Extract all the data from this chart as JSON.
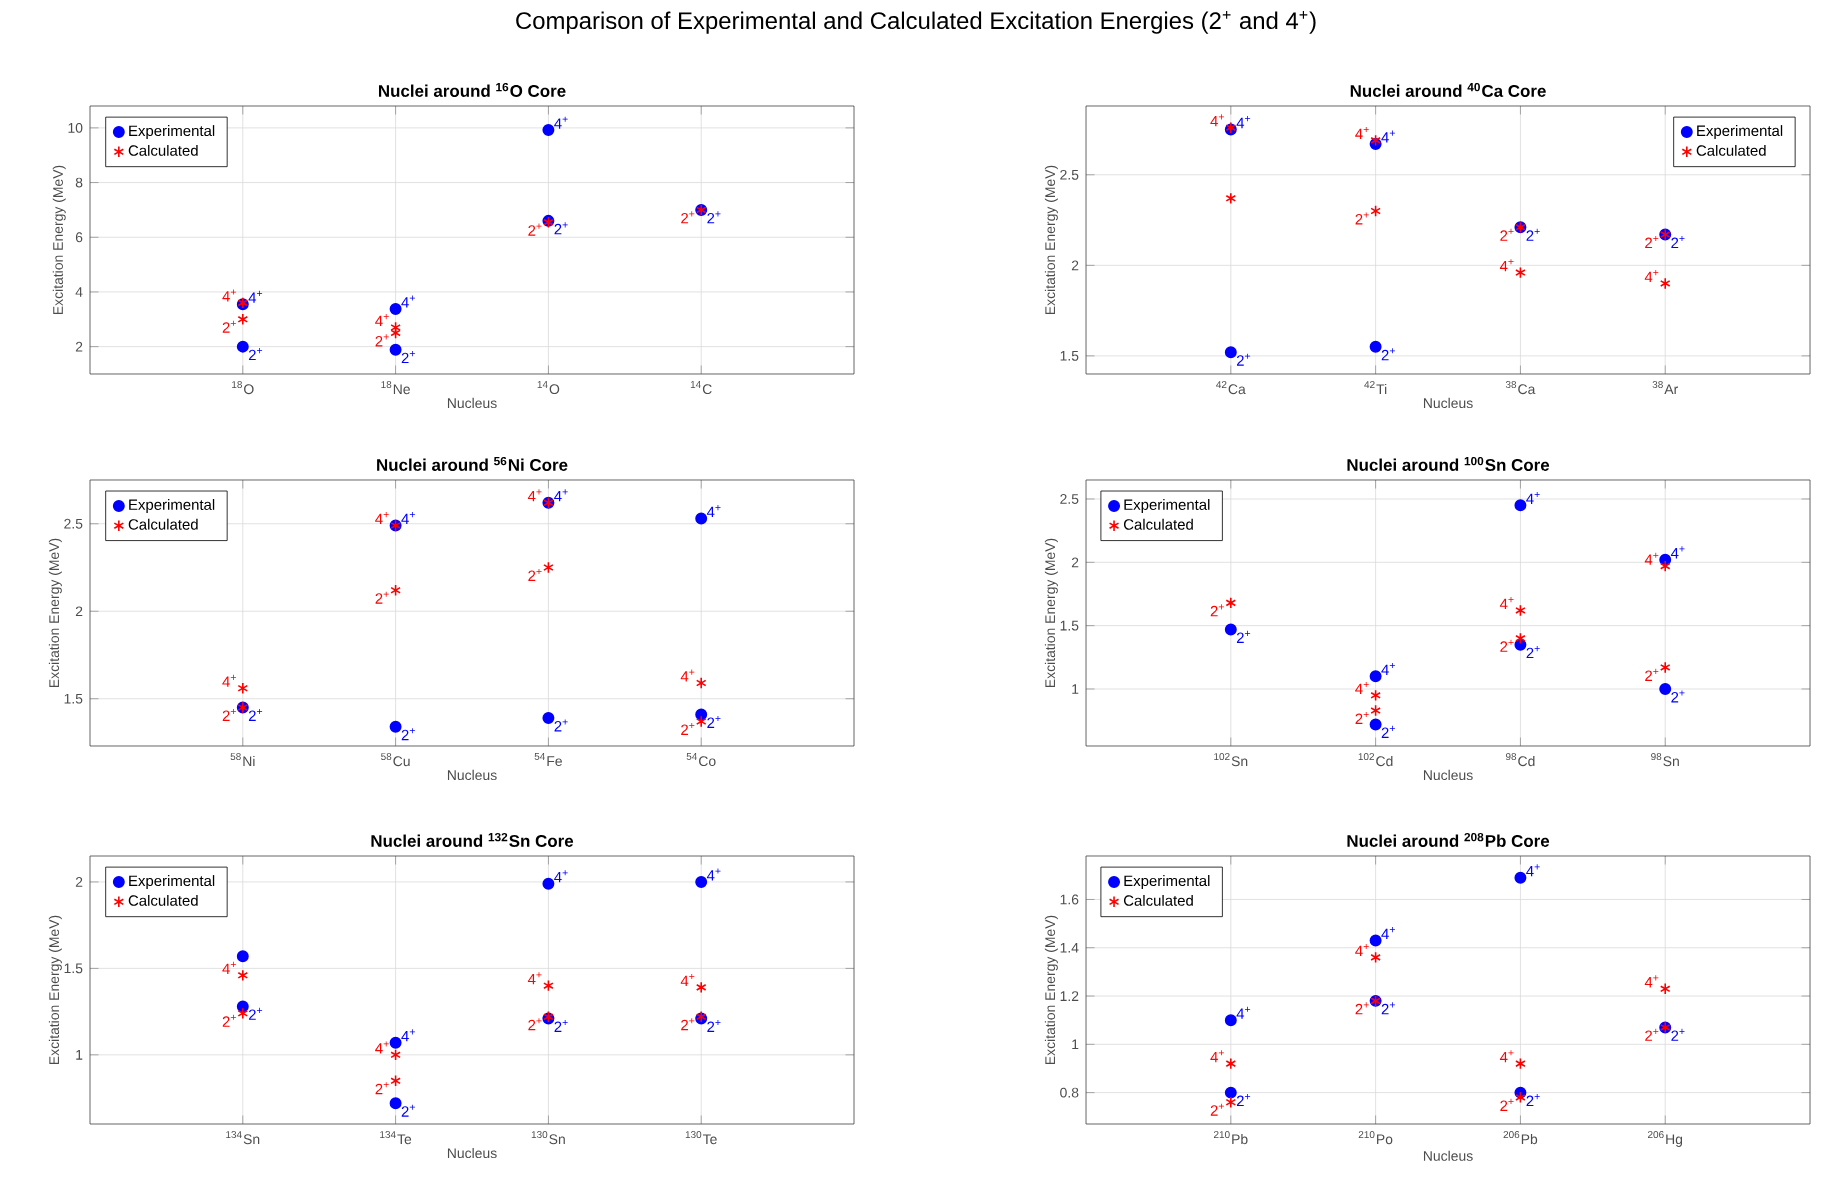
{
  "chart_data": [
    {
      "type": "scatter",
      "title": "Nuclei around $^{16}$O Core",
      "xlabel": "Nucleus",
      "ylabel": "Excitation Energy (MeV)",
      "categories": [
        "$^{18}$O",
        "$^{18}$Ne",
        "$^{14}$O",
        "$^{14}$C"
      ],
      "ylim": [
        1,
        10.8
      ],
      "yticks": [
        2,
        4,
        6,
        8,
        10
      ],
      "grid": true,
      "legend": "top left",
      "series": [
        {
          "name": "Experimental",
          "color": "#0000ff",
          "marker": "circle",
          "values": [
            2.0,
            1.89,
            6.6,
            7.0
          ]
        },
        {
          "color": "#0000ff",
          "marker": "circle",
          "values": [
            3.55,
            3.38,
            9.92,
            null
          ]
        },
        {
          "name": "Calculated",
          "color": "#ff0000",
          "marker": "cross",
          "values": [
            3.0,
            2.5,
            6.55,
            7.0
          ]
        },
        {
          "color": "#ff0000",
          "marker": "cross",
          "values": [
            3.6,
            2.7,
            null,
            null
          ]
        }
      ],
      "annotations": [
        "Comparison of Experimental and Calculated Excitation Energies (2$^{+}$ and 4$^{+}$)",
        {
          "text": "2$^{+}$",
          "x": "$^{18}$O",
          "y": 2.0
        },
        {
          "text": "2$^{+}$",
          "x": "$^{18}$Ne",
          "y": 1.89
        },
        {
          "text": "2$^{+}$",
          "x": "$^{14}$O",
          "y": 6.6
        },
        {
          "text": "2$^{+}$",
          "x": "$^{14}$C",
          "y": 7.0
        },
        {
          "text": "4$^{+}$",
          "x": "$^{18}$O",
          "y": 3.55
        },
        {
          "text": "4$^{+}$",
          "x": "$^{18}$Ne",
          "y": 3.38
        },
        {
          "text": "4$^{+}$",
          "x": "$^{14}$O",
          "y": 9.92
        },
        {
          "text": "2$^{+}$",
          "x": "$^{18}$O",
          "y": 3.0
        },
        {
          "text": "2$^{+}$",
          "x": "$^{18}$Ne",
          "y": 2.5
        },
        {
          "text": "2$^{+}$",
          "x": "$^{14}$O",
          "y": 6.55
        },
        {
          "text": "2$^{+}$",
          "x": "$^{14}$C",
          "y": 7.0
        },
        {
          "text": "4$^{+}$",
          "x": "$^{18}$O",
          "y": 3.6
        },
        {
          "text": "4$^{+}$",
          "x": "$^{18}$Ne",
          "y": 2.7
        }
      ]
    },
    {
      "type": "scatter",
      "title": "Nuclei around $^{40}$Ca Core",
      "xlabel": "Nucleus",
      "ylabel": "Excitation Energy (MeV)",
      "categories": [
        "$^{42}$Ca",
        "$^{42}$Ti",
        "$^{38}$Ca",
        "$^{38}$Ar"
      ],
      "ylim": [
        1.4,
        2.88
      ],
      "yticks": [
        1.5,
        2,
        2.5
      ],
      "grid": true,
      "legend": "top right",
      "series": [
        {
          "name": "Experimental",
          "color": "#0000ff",
          "marker": "circle",
          "values": [
            1.52,
            1.55,
            2.21,
            2.17
          ]
        },
        {
          "color": "#0000ff",
          "marker": "circle",
          "values": [
            2.75,
            2.67,
            null,
            null
          ]
        },
        {
          "name": "Calculated",
          "color": "#ff0000",
          "marker": "cross",
          "values": [
            2.37,
            2.3,
            2.21,
            2.17
          ]
        },
        {
          "color": "#ff0000",
          "marker": "cross",
          "values": [
            2.76,
            2.69,
            1.96,
            1.9
          ]
        }
      ],
      "annotations": [
        {
          "text": "2$^{+}$",
          "x": "$^{42}$Ca",
          "y": 1.52
        },
        {
          "text": "2$^{+}$",
          "x": "$^{42}$Ti",
          "y": 1.55
        },
        {
          "text": "2$^{+}$",
          "x": "$^{38}$Ca",
          "y": 2.21
        },
        {
          "text": "2$^{+}$",
          "x": "$^{38}$Ar",
          "y": 2.17
        },
        {
          "text": "4$^{+}$",
          "x": "$^{42}$Ca",
          "y": 2.75
        },
        {
          "text": "4$^{+}$",
          "x": "$^{42}$Ti",
          "y": 2.67
        },
        {
          "text": "2$^{+}$",
          "x": "$^{42}$Ti",
          "y": 2.3
        },
        {
          "text": "2$^{+}$",
          "x": "$^{38}$Ca",
          "y": 2.21
        },
        {
          "text": "2$^{+}$",
          "x": "$^{38}$Ar",
          "y": 2.17
        },
        {
          "text": "4$^{+}$",
          "x": "$^{42}$Ca",
          "y": 2.76
        },
        {
          "text": "4$^{+}$",
          "x": "$^{42}$Ti",
          "y": 2.69
        },
        {
          "text": "4$^{+}$",
          "x": "$^{38}$Ca",
          "y": 1.96
        },
        {
          "text": "4$^{+}$",
          "x": "$^{38}$Ar",
          "y": 1.9
        }
      ]
    },
    {
      "type": "scatter",
      "title": "Nuclei around $^{56}$Ni Core",
      "xlabel": "Nucleus",
      "ylabel": "Excitation Energy (MeV)",
      "categories": [
        "$^{58}$Ni",
        "$^{58}$Cu",
        "$^{54}$Fe",
        "$^{54}$Co"
      ],
      "ylim": [
        1.23,
        2.75
      ],
      "yticks": [
        1.5,
        2,
        2.5
      ],
      "grid": true,
      "legend": "top left",
      "series": [
        {
          "name": "Experimental",
          "color": "#0000ff",
          "marker": "circle",
          "values": [
            1.45,
            1.34,
            1.39,
            1.41
          ]
        },
        {
          "color": "#0000ff",
          "marker": "circle",
          "values": [
            null,
            2.49,
            2.62,
            2.53
          ]
        },
        {
          "name": "Calculated",
          "color": "#ff0000",
          "marker": "cross",
          "values": [
            1.45,
            2.12,
            2.25,
            1.37
          ]
        },
        {
          "color": "#ff0000",
          "marker": "cross",
          "values": [
            1.56,
            2.49,
            2.62,
            1.59
          ]
        }
      ],
      "annotations": [
        {
          "text": "2$^{+}$",
          "x": "$^{58}$Ni",
          "y": 1.45
        },
        {
          "text": "2$^{+}$",
          "x": "$^{58}$Cu",
          "y": 1.34
        },
        {
          "text": "2$^{+}$",
          "x": "$^{54}$Fe",
          "y": 1.39
        },
        {
          "text": "2$^{+}$",
          "x": "$^{54}$Co",
          "y": 1.41
        },
        {
          "text": "4$^{+}$",
          "x": "$^{58}$Cu",
          "y": 2.49
        },
        {
          "text": "4$^{+}$",
          "x": "$^{54}$Fe",
          "y": 2.62
        },
        {
          "text": "4$^{+}$",
          "x": "$^{54}$Co",
          "y": 2.53
        },
        {
          "text": "2$^{+}$",
          "x": "$^{58}$Ni",
          "y": 1.45
        },
        {
          "text": "2$^{+}$",
          "x": "$^{58}$Cu",
          "y": 2.12
        },
        {
          "text": "2$^{+}$",
          "x": "$^{54}$Fe",
          "y": 2.25
        },
        {
          "text": "2$^{+}$",
          "x": "$^{54}$Co",
          "y": 1.37
        },
        {
          "text": "4$^{+}$",
          "x": "$^{58}$Ni",
          "y": 1.56
        },
        {
          "text": "4$^{+}$",
          "x": "$^{58}$Cu",
          "y": 2.49
        },
        {
          "text": "4$^{+}$",
          "x": "$^{54}$Fe",
          "y": 2.62
        },
        {
          "text": "4$^{+}$",
          "x": "$^{54}$Co",
          "y": 1.59
        }
      ]
    },
    {
      "type": "scatter",
      "title": "Nuclei around $^{100}$Sn Core",
      "xlabel": "Nucleus",
      "ylabel": "Excitation Energy (MeV)",
      "categories": [
        "$^{102}$Sn",
        "$^{102}$Cd",
        "$^{98}$Cd",
        "$^{98}$Sn"
      ],
      "ylim": [
        0.55,
        2.65
      ],
      "yticks": [
        1,
        1.5,
        2,
        2.5
      ],
      "grid": true,
      "legend": "top left",
      "series": [
        {
          "name": "Experimental",
          "color": "#0000ff",
          "marker": "circle",
          "values": [
            1.47,
            0.72,
            1.35,
            1.0
          ]
        },
        {
          "color": "#0000ff",
          "marker": "circle",
          "values": [
            null,
            1.1,
            2.45,
            2.02
          ]
        },
        {
          "name": "Calculated",
          "color": "#ff0000",
          "marker": "cross",
          "values": [
            1.68,
            0.83,
            1.4,
            1.17
          ]
        },
        {
          "color": "#ff0000",
          "marker": "cross",
          "values": [
            null,
            0.95,
            1.62,
            1.97
          ]
        }
      ],
      "annotations": [
        {
          "text": "2$^{+}$",
          "x": "$^{102}$Sn",
          "y": 1.47
        },
        {
          "text": "2$^{+}$",
          "x": "$^{102}$Cd",
          "y": 0.72
        },
        {
          "text": "2$^{+}$",
          "x": "$^{98}$Cd",
          "y": 1.35
        },
        {
          "text": "2$^{+}$",
          "x": "$^{98}$Sn",
          "y": 1.0
        },
        {
          "text": "4$^{+}$",
          "x": "$^{102}$Cd",
          "y": 1.1
        },
        {
          "text": "4$^{+}$",
          "x": "$^{98}$Cd",
          "y": 2.45
        },
        {
          "text": "4$^{+}$",
          "x": "$^{98}$Sn",
          "y": 2.02
        },
        {
          "text": "2$^{+}$",
          "x": "$^{102}$Sn",
          "y": 1.68
        },
        {
          "text": "2$^{+}$",
          "x": "$^{102}$Cd",
          "y": 0.83
        },
        {
          "text": "2$^{+}$",
          "x": "$^{98}$Cd",
          "y": 1.4
        },
        {
          "text": "2$^{+}$",
          "x": "$^{98}$Sn",
          "y": 1.17
        },
        {
          "text": "4$^{+}$",
          "x": "$^{102}$Cd",
          "y": 0.95
        },
        {
          "text": "4$^{+}$",
          "x": "$^{98}$Cd",
          "y": 1.62
        },
        {
          "text": "4$^{+}$",
          "x": "$^{98}$Sn",
          "y": 1.97
        }
      ]
    },
    {
      "type": "scatter",
      "title": "Nuclei around $^{132}$Sn Core",
      "xlabel": "Nucleus",
      "ylabel": "Excitation Energy (MeV)",
      "categories": [
        "$^{134}$Sn",
        "$^{134}$Te",
        "$^{130}$Sn",
        "$^{130}$Te"
      ],
      "ylim": [
        0.6,
        2.15
      ],
      "yticks": [
        1,
        1.5,
        2
      ],
      "grid": true,
      "legend": "top left",
      "series": [
        {
          "name": "Experimental",
          "color": "#0000ff",
          "marker": "circle",
          "values": [
            1.28,
            0.72,
            1.21,
            1.21
          ]
        },
        {
          "color": "#0000ff",
          "marker": "circle",
          "values": [
            1.57,
            1.07,
            1.99,
            2.0
          ]
        },
        {
          "name": "Calculated",
          "color": "#ff0000",
          "marker": "cross",
          "values": [
            1.24,
            0.85,
            1.22,
            1.22
          ]
        },
        {
          "color": "#ff0000",
          "marker": "cross",
          "values": [
            1.46,
            1.0,
            1.4,
            1.39
          ]
        }
      ],
      "annotations": [
        {
          "text": "2$^{+}$",
          "x": "$^{134}$Sn",
          "y": 1.28
        },
        {
          "text": "2$^{+}$",
          "x": "$^{134}$Te",
          "y": 0.72
        },
        {
          "text": "2$^{+}$",
          "x": "$^{130}$Sn",
          "y": 1.21
        },
        {
          "text": "2$^{+}$",
          "x": "$^{130}$Te",
          "y": 1.21
        },
        {
          "text": "4$^{+}$",
          "x": "$^{134}$Te",
          "y": 1.07
        },
        {
          "text": "4$^{+}$",
          "x": "$^{130}$Sn",
          "y": 1.99
        },
        {
          "text": "4$^{+}$",
          "x": "$^{130}$Te",
          "y": 2.0
        },
        {
          "text": "2$^{+}$",
          "x": "$^{134}$Sn",
          "y": 1.24
        },
        {
          "text": "2$^{+}$",
          "x": "$^{134}$Te",
          "y": 0.85
        },
        {
          "text": "2$^{+}$",
          "x": "$^{130}$Sn",
          "y": 1.22
        },
        {
          "text": "2$^{+}$",
          "x": "$^{130}$Te",
          "y": 1.22
        },
        {
          "text": "4$^{+}$",
          "x": "$^{134}$Sn",
          "y": 1.46
        },
        {
          "text": "4$^{+}$",
          "x": "$^{134}$Te",
          "y": 1.0
        },
        {
          "text": "4$^{+}$",
          "x": "$^{130}$Sn",
          "y": 1.4
        },
        {
          "text": "4$^{+}$",
          "x": "$^{130}$Te",
          "y": 1.39
        }
      ]
    },
    {
      "type": "scatter",
      "title": "Nuclei around $^{208}$Pb Core",
      "xlabel": "Nucleus",
      "ylabel": "Excitation Energy (MeV)",
      "categories": [
        "$^{210}$Pb",
        "$^{210}$Po",
        "$^{206}$Pb",
        "$^{206}$Hg"
      ],
      "ylim": [
        0.67,
        1.78
      ],
      "yticks": [
        0.8,
        1,
        1.2,
        1.4,
        1.6
      ],
      "grid": true,
      "legend": "top left",
      "series": [
        {
          "name": "Experimental",
          "color": "#0000ff",
          "marker": "circle",
          "values": [
            0.8,
            1.18,
            0.8,
            1.07
          ]
        },
        {
          "color": "#0000ff",
          "marker": "circle",
          "values": [
            1.1,
            1.43,
            1.69,
            null
          ]
        },
        {
          "name": "Calculated",
          "color": "#ff0000",
          "marker": "cross",
          "values": [
            0.76,
            1.18,
            0.78,
            1.07
          ]
        },
        {
          "color": "#ff0000",
          "marker": "cross",
          "values": [
            0.92,
            1.36,
            0.92,
            1.23
          ]
        }
      ],
      "annotations": [
        {
          "text": "2$^{+}$",
          "x": "$^{210}$Pb",
          "y": 0.8
        },
        {
          "text": "2$^{+}$",
          "x": "$^{210}$Po",
          "y": 1.18
        },
        {
          "text": "2$^{+}$",
          "x": "$^{206}$Pb",
          "y": 0.8
        },
        {
          "text": "2$^{+}$",
          "x": "$^{206}$Hg",
          "y": 1.07
        },
        {
          "text": "4$^{+}$",
          "x": "$^{210}$Pb",
          "y": 1.1
        },
        {
          "text": "4$^{+}$",
          "x": "$^{210}$Po",
          "y": 1.43
        },
        {
          "text": "4$^{+}$",
          "x": "$^{206}$Pb",
          "y": 1.69
        },
        {
          "text": "2$^{+}$",
          "x": "$^{210}$Pb",
          "y": 0.76
        },
        {
          "text": "2$^{+}$",
          "x": "$^{210}$Po",
          "y": 1.18
        },
        {
          "text": "2$^{+}$",
          "x": "$^{206}$Pb",
          "y": 0.78
        },
        {
          "text": "2$^{+}$",
          "x": "$^{206}$Hg",
          "y": 1.07
        },
        {
          "text": "4$^{+}$",
          "x": "$^{210}$Pb",
          "y": 0.92
        },
        {
          "text": "4$^{+}$",
          "x": "$^{210}$Po",
          "y": 1.36
        },
        {
          "text": "4$^{+}$",
          "x": "$^{206}$Pb",
          "y": 0.92
        },
        {
          "text": "4$^{+}$",
          "x": "$^{206}$Hg",
          "y": 1.23
        }
      ]
    }
  ]
}
